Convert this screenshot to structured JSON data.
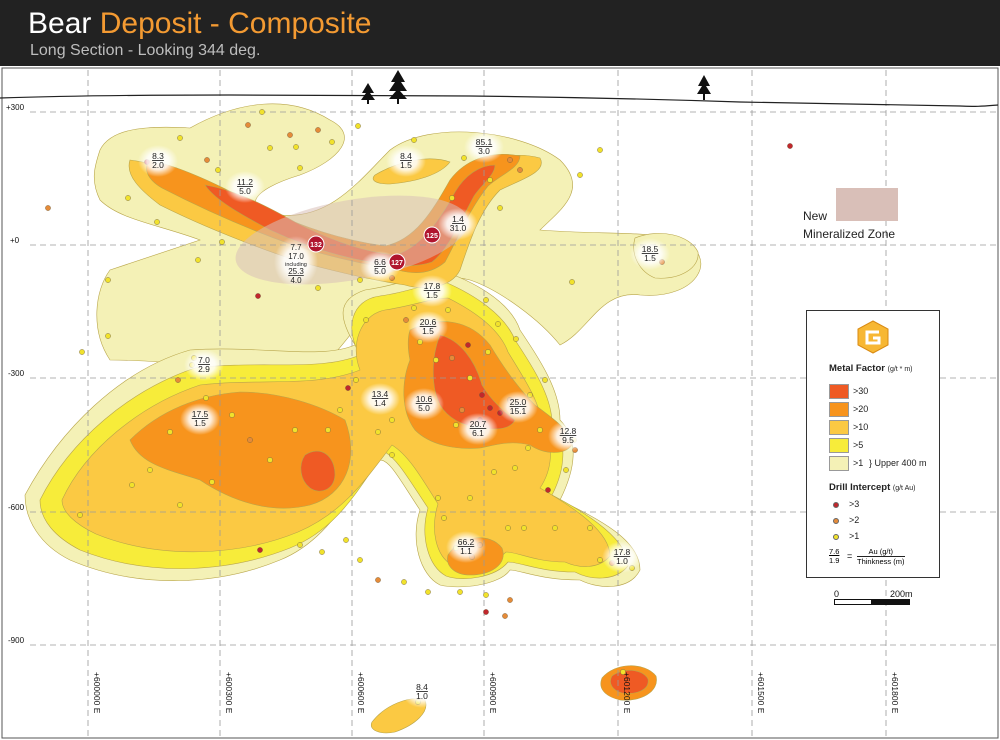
{
  "header": {
    "title_part1": "Bear",
    "title_part2": "Deposit - Composite",
    "subtitle": "Long Section - Looking 344 deg."
  },
  "elevation_labels": [
    "+300",
    "+0",
    "-300",
    "-600",
    "-900"
  ],
  "easting_labels": [
    "+600000 E",
    "+600300 E",
    "+600600 E",
    "+600900 E",
    "+601200 E",
    "+601500 E",
    "+601800 E"
  ],
  "new_zone": {
    "line1": "New",
    "line2": "Mineralized Zone"
  },
  "metal_factor_colors": {
    "gt30": "#ef5a24",
    "gt20": "#f7941d",
    "gt10": "#fbc943",
    "gt5": "#f7ec3a",
    "gt1": "#f4f1b6",
    "zone": "#d9bfb8",
    "drill_gt3": "#c1272d",
    "drill_gt2": "#e58b39",
    "drill_gt1": "#f1e22c"
  },
  "intercepts": [
    {
      "au": "8.3",
      "th": "2.0"
    },
    {
      "au": "11.2",
      "th": "5.0"
    },
    {
      "au": "8.4",
      "th": "1.5"
    },
    {
      "au": "85.1",
      "th": "3.0"
    },
    {
      "au": "1.4",
      "th": "31.0"
    },
    {
      "au": "18.5",
      "th": "1.5"
    },
    {
      "au": "17.8",
      "th": "1.5"
    },
    {
      "au": "20.6",
      "th": "1.5"
    },
    {
      "au": "7.0",
      "th": "2.9"
    },
    {
      "au": "17.5",
      "th": "1.5"
    },
    {
      "au": "13.4",
      "th": "1.4"
    },
    {
      "au": "10.6",
      "th": "5.0"
    },
    {
      "au": "25.0",
      "th": "15.1"
    },
    {
      "au": "20.7",
      "th": "6.1"
    },
    {
      "au": "12.8",
      "th": "9.5"
    },
    {
      "au": "66.2",
      "th": "1.1"
    },
    {
      "au": "17.8",
      "th": "1.0"
    },
    {
      "au": "8.4",
      "th": "1.0"
    },
    {
      "au": "6.6",
      "th": "5.0"
    }
  ],
  "complex_intercept": {
    "line1": "7.7",
    "line2": "17.0",
    "line3": "including",
    "line4": "25.3",
    "line5": "4.0"
  },
  "hole_badges": [
    "132",
    "127",
    "125"
  ],
  "legend": {
    "metal_factor_title": "Metal Factor",
    "metal_factor_unit": "(g/t * m)",
    "mf_items": [
      ">30",
      ">20",
      ">10",
      ">5",
      ">1"
    ],
    "upper_note": "} Upper 400 m",
    "drill_title": "Drill Intercept",
    "drill_unit": "(g/t Au)",
    "drill_items": [
      ">3",
      ">2",
      ">1"
    ],
    "example_au": "7.6",
    "example_th": "1.9",
    "equals": "=",
    "formula_top": "Au (g/t)",
    "formula_bottom": "Thinkness (m)",
    "scale_zero": "0",
    "scale_end": "200m"
  }
}
